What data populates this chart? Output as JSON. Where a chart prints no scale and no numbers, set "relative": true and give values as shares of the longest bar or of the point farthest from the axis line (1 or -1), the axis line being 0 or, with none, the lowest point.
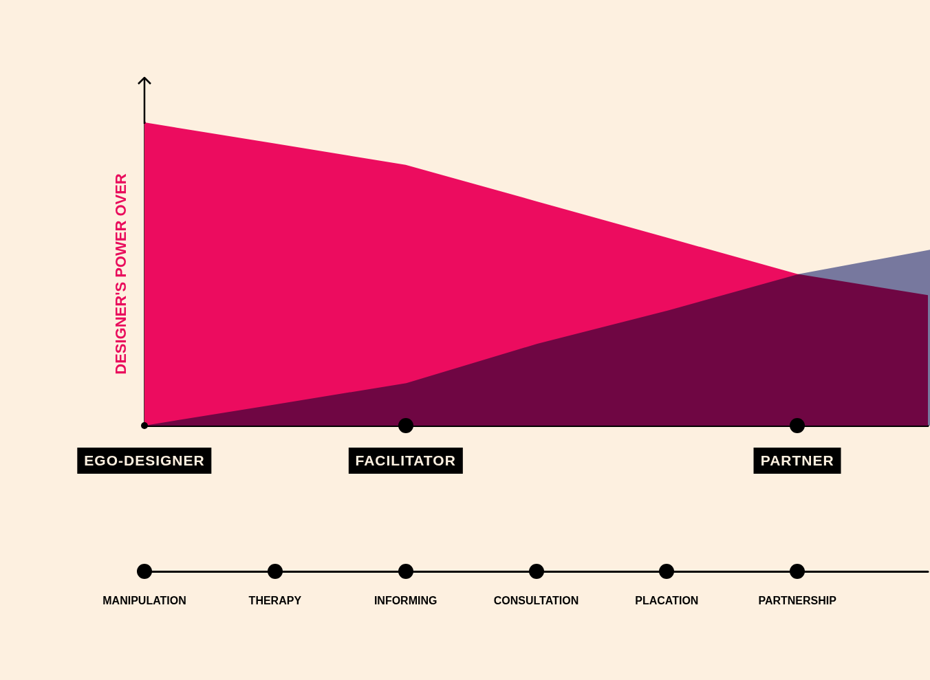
{
  "chart_data": {
    "type": "area",
    "ylabel": "DESIGNER'S POWER OVER",
    "relative": true,
    "grid": false,
    "categories": [
      "MANIPULATION",
      "THERAPY",
      "INFORMING",
      "CONSULTATION",
      "PLACATION",
      "PARTNERSHIP",
      null
    ],
    "annotations": [
      {
        "text": "EGO-DESIGNER",
        "x": "MANIPULATION",
        "y": 0
      },
      {
        "text": "FACILITATOR",
        "x": "INFORMING",
        "y": 0
      },
      {
        "text": "PARTNER",
        "x": "PARTNERSHIP",
        "y": 0
      }
    ],
    "series": [
      {
        "color": "#ec0c5f",
        "values": [
          1,
          0.93,
          0.86,
          0.74,
          0.62,
          0.5,
          0.43
        ]
      },
      {
        "color": "#7880b4",
        "values": [
          0,
          0.07,
          0.14,
          0.27,
          0.38,
          0.5,
          0.58
        ]
      }
    ]
  }
}
